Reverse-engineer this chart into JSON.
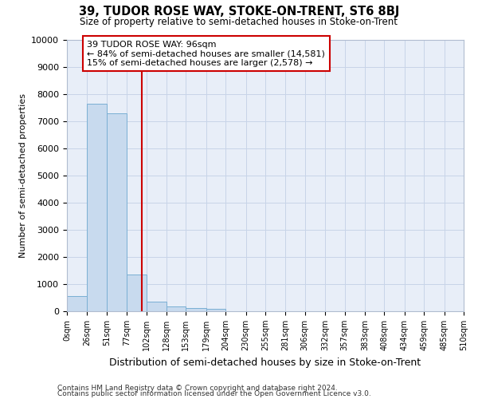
{
  "title": "39, TUDOR ROSE WAY, STOKE-ON-TRENT, ST6 8BJ",
  "subtitle": "Size of property relative to semi-detached houses in Stoke-on-Trent",
  "xlabel": "Distribution of semi-detached houses by size in Stoke-on-Trent",
  "ylabel": "Number of semi-detached properties",
  "footnote1": "Contains HM Land Registry data © Crown copyright and database right 2024.",
  "footnote2": "Contains public sector information licensed under the Open Government Licence v3.0.",
  "bin_edges": [
    0,
    26,
    51,
    77,
    102,
    128,
    153,
    179,
    204,
    230,
    255,
    281,
    306,
    332,
    357,
    383,
    408,
    434,
    459,
    485,
    510
  ],
  "bar_heights": [
    550,
    7650,
    7300,
    1350,
    340,
    175,
    125,
    90,
    0,
    0,
    0,
    0,
    0,
    0,
    0,
    0,
    0,
    0,
    0,
    0
  ],
  "bar_color": "#c8daee",
  "bar_edge_color": "#7aafd4",
  "property_size": 96,
  "red_line_color": "#cc0000",
  "annotation_text_line1": "39 TUDOR ROSE WAY: 96sqm",
  "annotation_text_line2": "← 84% of semi-detached houses are smaller (14,581)",
  "annotation_text_line3": "15% of semi-detached houses are larger (2,578) →",
  "annotation_box_color": "#ffffff",
  "annotation_box_edge": "#cc0000",
  "ylim": [
    0,
    10000
  ],
  "yticks": [
    0,
    1000,
    2000,
    3000,
    4000,
    5000,
    6000,
    7000,
    8000,
    9000,
    10000
  ],
  "grid_color": "#c8d4e8",
  "bg_color": "#e8eef8"
}
